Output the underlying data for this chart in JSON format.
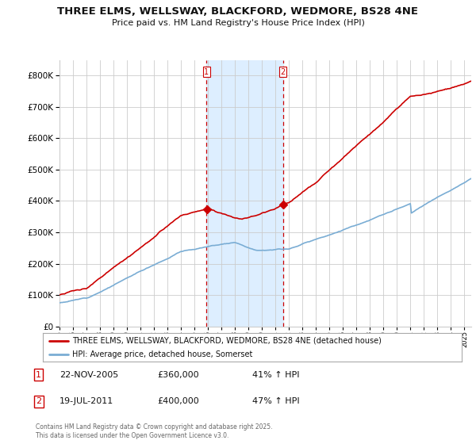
{
  "title": "THREE ELMS, WELLSWAY, BLACKFORD, WEDMORE, BS28 4NE",
  "subtitle": "Price paid vs. HM Land Registry's House Price Index (HPI)",
  "ylim": [
    0,
    850000
  ],
  "yticks": [
    0,
    100000,
    200000,
    300000,
    400000,
    500000,
    600000,
    700000,
    800000
  ],
  "ytick_labels": [
    "£0",
    "£100K",
    "£200K",
    "£300K",
    "£400K",
    "£500K",
    "£600K",
    "£700K",
    "£800K"
  ],
  "red_line_color": "#cc0000",
  "blue_line_color": "#7aadd4",
  "shade_color": "#ddeeff",
  "grid_color": "#cccccc",
  "background_color": "#ffffff",
  "sale1_year": 2005.9,
  "sale2_year": 2011.55,
  "legend_red": "THREE ELMS, WELLSWAY, BLACKFORD, WEDMORE, BS28 4NE (detached house)",
  "legend_blue": "HPI: Average price, detached house, Somerset",
  "note1_label": "1",
  "note1_date": "22-NOV-2005",
  "note1_price": "£360,000",
  "note1_hpi": "41% ↑ HPI",
  "note2_label": "2",
  "note2_date": "19-JUL-2011",
  "note2_price": "£400,000",
  "note2_hpi": "47% ↑ HPI",
  "footer": "Contains HM Land Registry data © Crown copyright and database right 2025.\nThis data is licensed under the Open Government Licence v3.0."
}
